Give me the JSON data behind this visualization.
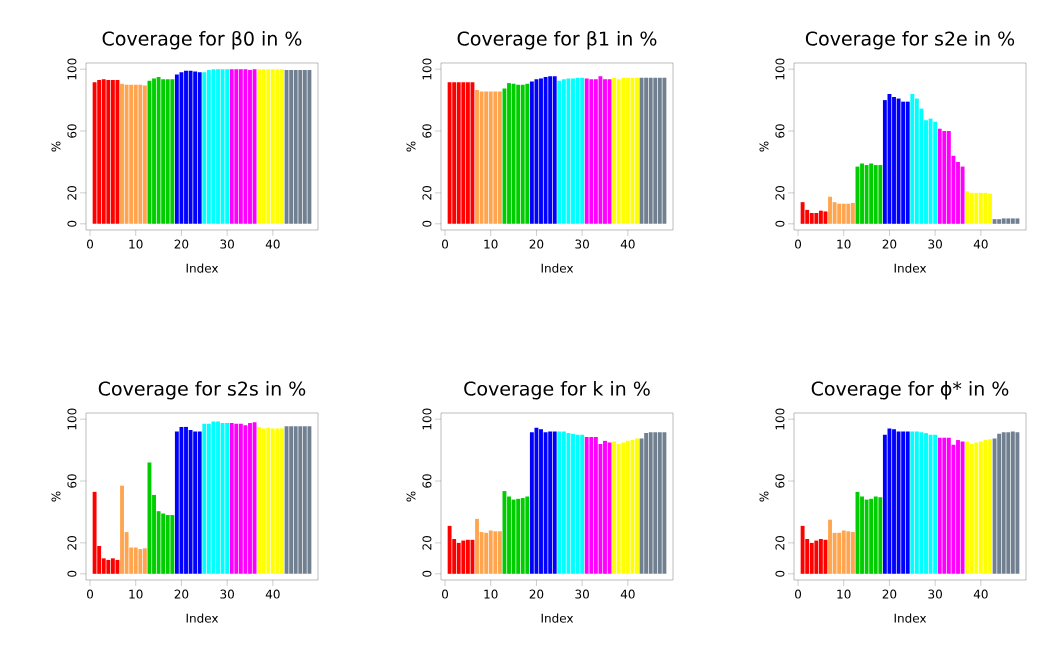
{
  "chart_data": [
    {
      "type": "bar",
      "title": "Coverage for β0 in %",
      "xlabel": "Index",
      "ylabel": "%",
      "xlim": [
        -0.88,
        49.88
      ],
      "ylim": [
        -4,
        104
      ],
      "xticks": [
        0,
        10,
        20,
        30,
        40
      ],
      "yticks": [
        0,
        20,
        60,
        100
      ],
      "x": [
        1,
        2,
        3,
        4,
        5,
        6,
        7,
        8,
        9,
        10,
        11,
        12,
        13,
        14,
        15,
        16,
        17,
        18,
        19,
        20,
        21,
        22,
        23,
        24,
        25,
        26,
        27,
        28,
        29,
        30,
        31,
        32,
        33,
        34,
        35,
        36,
        37,
        38,
        39,
        40,
        41,
        42,
        43,
        44,
        45,
        46,
        47,
        48
      ],
      "values": [
        91.5,
        93,
        93.5,
        93,
        93,
        93,
        90.5,
        90,
        90,
        90,
        90,
        89.5,
        92.5,
        94,
        95,
        93.5,
        93.5,
        93.5,
        96.5,
        98,
        99,
        99,
        98.5,
        98,
        98,
        99.5,
        100,
        100,
        100,
        100,
        100,
        100,
        100,
        100,
        99.5,
        100,
        100,
        100,
        100,
        100,
        100,
        100,
        99.5,
        99.5,
        99.5,
        99.5,
        99.5,
        99.5
      ],
      "colors": [
        "#ff0000",
        "#ff0000",
        "#ff0000",
        "#ff0000",
        "#ff0000",
        "#ff0000",
        "#ffa54f",
        "#ffa54f",
        "#ffa54f",
        "#ffa54f",
        "#ffa54f",
        "#ffa54f",
        "#00cd00",
        "#00cd00",
        "#00cd00",
        "#00cd00",
        "#00cd00",
        "#00cd00",
        "#0000ff",
        "#0000ff",
        "#0000ff",
        "#0000ff",
        "#0000ff",
        "#0000ff",
        "#00ffff",
        "#00ffff",
        "#00ffff",
        "#00ffff",
        "#00ffff",
        "#00ffff",
        "#ff00ff",
        "#ff00ff",
        "#ff00ff",
        "#ff00ff",
        "#ff00ff",
        "#ff00ff",
        "#ffff00",
        "#ffff00",
        "#ffff00",
        "#ffff00",
        "#ffff00",
        "#ffff00",
        "#708090",
        "#708090",
        "#708090",
        "#708090",
        "#708090",
        "#708090"
      ]
    },
    {
      "type": "bar",
      "title": "Coverage for β1 in %",
      "xlabel": "Index",
      "ylabel": "%",
      "xlim": [
        -0.88,
        49.88
      ],
      "ylim": [
        -4,
        104
      ],
      "xticks": [
        0,
        10,
        20,
        30,
        40
      ],
      "yticks": [
        0,
        20,
        60,
        100
      ],
      "x": [
        1,
        2,
        3,
        4,
        5,
        6,
        7,
        8,
        9,
        10,
        11,
        12,
        13,
        14,
        15,
        16,
        17,
        18,
        19,
        20,
        21,
        22,
        23,
        24,
        25,
        26,
        27,
        28,
        29,
        30,
        31,
        32,
        33,
        34,
        35,
        36,
        37,
        38,
        39,
        40,
        41,
        42,
        43,
        44,
        45,
        46,
        47,
        48
      ],
      "values": [
        91.5,
        91.5,
        91.5,
        91.5,
        91.5,
        91.5,
        86.5,
        85.5,
        85.5,
        85.5,
        85.5,
        85.5,
        87.5,
        91,
        90.5,
        90,
        90,
        90.5,
        92,
        93.5,
        94,
        95,
        95.5,
        95.5,
        92.5,
        93.5,
        94,
        94,
        94.5,
        94.5,
        94,
        93.5,
        93.5,
        95.5,
        93.5,
        93.5,
        94.5,
        93.5,
        94.5,
        94.5,
        94.5,
        94.5,
        94.5,
        94.5,
        94.5,
        94.5,
        94.5,
        94.5
      ],
      "colors": [
        "#ff0000",
        "#ff0000",
        "#ff0000",
        "#ff0000",
        "#ff0000",
        "#ff0000",
        "#ffa54f",
        "#ffa54f",
        "#ffa54f",
        "#ffa54f",
        "#ffa54f",
        "#ffa54f",
        "#00cd00",
        "#00cd00",
        "#00cd00",
        "#00cd00",
        "#00cd00",
        "#00cd00",
        "#0000ff",
        "#0000ff",
        "#0000ff",
        "#0000ff",
        "#0000ff",
        "#0000ff",
        "#00ffff",
        "#00ffff",
        "#00ffff",
        "#00ffff",
        "#00ffff",
        "#00ffff",
        "#ff00ff",
        "#ff00ff",
        "#ff00ff",
        "#ff00ff",
        "#ff00ff",
        "#ff00ff",
        "#ffff00",
        "#ffff00",
        "#ffff00",
        "#ffff00",
        "#ffff00",
        "#ffff00",
        "#708090",
        "#708090",
        "#708090",
        "#708090",
        "#708090",
        "#708090"
      ]
    },
    {
      "type": "bar",
      "title": "Coverage for s2e in %",
      "xlabel": "Index",
      "ylabel": "%",
      "xlim": [
        -0.88,
        49.88
      ],
      "ylim": [
        -4,
        104
      ],
      "xticks": [
        0,
        10,
        20,
        30,
        40
      ],
      "yticks": [
        0,
        20,
        60,
        100
      ],
      "x": [
        1,
        2,
        3,
        4,
        5,
        6,
        7,
        8,
        9,
        10,
        11,
        12,
        13,
        14,
        15,
        16,
        17,
        18,
        19,
        20,
        21,
        22,
        23,
        24,
        25,
        26,
        27,
        28,
        29,
        30,
        31,
        32,
        33,
        34,
        35,
        36,
        37,
        38,
        39,
        40,
        41,
        42,
        43,
        44,
        45,
        46,
        47,
        48
      ],
      "values": [
        14,
        9,
        7,
        7,
        8.5,
        8,
        17.5,
        14,
        13,
        13,
        13,
        13.5,
        37,
        39,
        38,
        39,
        38,
        38,
        80,
        84,
        82,
        81,
        79,
        79,
        84,
        81,
        74.5,
        67,
        68,
        66,
        61.5,
        60,
        60,
        44,
        40,
        37,
        21,
        20,
        20,
        20,
        20,
        19.5,
        3,
        3,
        3.5,
        3.5,
        3.5,
        3.5
      ],
      "colors": [
        "#ff0000",
        "#ff0000",
        "#ff0000",
        "#ff0000",
        "#ff0000",
        "#ff0000",
        "#ffa54f",
        "#ffa54f",
        "#ffa54f",
        "#ffa54f",
        "#ffa54f",
        "#ffa54f",
        "#00cd00",
        "#00cd00",
        "#00cd00",
        "#00cd00",
        "#00cd00",
        "#00cd00",
        "#0000ff",
        "#0000ff",
        "#0000ff",
        "#0000ff",
        "#0000ff",
        "#0000ff",
        "#00ffff",
        "#00ffff",
        "#00ffff",
        "#00ffff",
        "#00ffff",
        "#00ffff",
        "#ff00ff",
        "#ff00ff",
        "#ff00ff",
        "#ff00ff",
        "#ff00ff",
        "#ff00ff",
        "#ffff00",
        "#ffff00",
        "#ffff00",
        "#ffff00",
        "#ffff00",
        "#ffff00",
        "#708090",
        "#708090",
        "#708090",
        "#708090",
        "#708090",
        "#708090"
      ]
    },
    {
      "type": "bar",
      "title": "Coverage for s2s in %",
      "xlabel": "Index",
      "ylabel": "%",
      "xlim": [
        -0.88,
        49.88
      ],
      "ylim": [
        -4,
        104
      ],
      "xticks": [
        0,
        10,
        20,
        30,
        40
      ],
      "yticks": [
        0,
        20,
        60,
        100
      ],
      "x": [
        1,
        2,
        3,
        4,
        5,
        6,
        7,
        8,
        9,
        10,
        11,
        12,
        13,
        14,
        15,
        16,
        17,
        18,
        19,
        20,
        21,
        22,
        23,
        24,
        25,
        26,
        27,
        28,
        29,
        30,
        31,
        32,
        33,
        34,
        35,
        36,
        37,
        38,
        39,
        40,
        41,
        42,
        43,
        44,
        45,
        46,
        47,
        48
      ],
      "values": [
        53,
        18,
        10,
        9,
        10,
        9,
        57,
        27,
        17,
        17,
        16,
        16.5,
        72,
        51,
        40.5,
        39,
        38,
        38,
        92,
        95,
        95,
        93,
        92,
        92,
        97,
        97,
        98.5,
        98.5,
        97.5,
        97.5,
        97.5,
        97,
        97,
        96,
        97.5,
        98,
        95,
        94,
        94.5,
        94,
        94,
        94,
        95.5,
        95.5,
        95.5,
        95.5,
        95.5,
        95.5
      ],
      "colors": [
        "#ff0000",
        "#ff0000",
        "#ff0000",
        "#ff0000",
        "#ff0000",
        "#ff0000",
        "#ffa54f",
        "#ffa54f",
        "#ffa54f",
        "#ffa54f",
        "#ffa54f",
        "#ffa54f",
        "#00cd00",
        "#00cd00",
        "#00cd00",
        "#00cd00",
        "#00cd00",
        "#00cd00",
        "#0000ff",
        "#0000ff",
        "#0000ff",
        "#0000ff",
        "#0000ff",
        "#0000ff",
        "#00ffff",
        "#00ffff",
        "#00ffff",
        "#00ffff",
        "#00ffff",
        "#00ffff",
        "#ff00ff",
        "#ff00ff",
        "#ff00ff",
        "#ff00ff",
        "#ff00ff",
        "#ff00ff",
        "#ffff00",
        "#ffff00",
        "#ffff00",
        "#ffff00",
        "#ffff00",
        "#ffff00",
        "#708090",
        "#708090",
        "#708090",
        "#708090",
        "#708090",
        "#708090"
      ]
    },
    {
      "type": "bar",
      "title": "Coverage for k in %",
      "xlabel": "Index",
      "ylabel": "%",
      "xlim": [
        -0.88,
        49.88
      ],
      "ylim": [
        -4,
        104
      ],
      "xticks": [
        0,
        10,
        20,
        30,
        40
      ],
      "yticks": [
        0,
        20,
        60,
        100
      ],
      "x": [
        1,
        2,
        3,
        4,
        5,
        6,
        7,
        8,
        9,
        10,
        11,
        12,
        13,
        14,
        15,
        16,
        17,
        18,
        19,
        20,
        21,
        22,
        23,
        24,
        25,
        26,
        27,
        28,
        29,
        30,
        31,
        32,
        33,
        34,
        35,
        36,
        37,
        38,
        39,
        40,
        41,
        42,
        43,
        44,
        45,
        46,
        47,
        48
      ],
      "values": [
        31,
        22.5,
        20,
        21.5,
        22,
        22,
        35.5,
        27,
        26.5,
        28,
        27.5,
        27.5,
        53.5,
        50,
        48,
        48.5,
        49,
        50,
        91.5,
        94.5,
        93.5,
        91.5,
        92,
        92,
        92,
        92,
        91,
        90.5,
        90,
        90,
        88.5,
        88.5,
        88.5,
        84,
        86,
        85,
        85.5,
        84,
        85,
        86,
        86.5,
        87.5,
        87.5,
        91,
        91.5,
        91.5,
        91.5,
        91.5
      ],
      "colors": [
        "#ff0000",
        "#ff0000",
        "#ff0000",
        "#ff0000",
        "#ff0000",
        "#ff0000",
        "#ffa54f",
        "#ffa54f",
        "#ffa54f",
        "#ffa54f",
        "#ffa54f",
        "#ffa54f",
        "#00cd00",
        "#00cd00",
        "#00cd00",
        "#00cd00",
        "#00cd00",
        "#00cd00",
        "#0000ff",
        "#0000ff",
        "#0000ff",
        "#0000ff",
        "#0000ff",
        "#0000ff",
        "#00ffff",
        "#00ffff",
        "#00ffff",
        "#00ffff",
        "#00ffff",
        "#00ffff",
        "#ff00ff",
        "#ff00ff",
        "#ff00ff",
        "#ff00ff",
        "#ff00ff",
        "#ff00ff",
        "#ffff00",
        "#ffff00",
        "#ffff00",
        "#ffff00",
        "#ffff00",
        "#ffff00",
        "#708090",
        "#708090",
        "#708090",
        "#708090",
        "#708090",
        "#708090"
      ]
    },
    {
      "type": "bar",
      "title": "Coverage for ϕ* in %",
      "xlabel": "Index",
      "ylabel": "%",
      "xlim": [
        -0.88,
        49.88
      ],
      "ylim": [
        -4,
        104
      ],
      "xticks": [
        0,
        10,
        20,
        30,
        40
      ],
      "yticks": [
        0,
        20,
        60,
        100
      ],
      "x": [
        1,
        2,
        3,
        4,
        5,
        6,
        7,
        8,
        9,
        10,
        11,
        12,
        13,
        14,
        15,
        16,
        17,
        18,
        19,
        20,
        21,
        22,
        23,
        24,
        25,
        26,
        27,
        28,
        29,
        30,
        31,
        32,
        33,
        34,
        35,
        36,
        37,
        38,
        39,
        40,
        41,
        42,
        43,
        44,
        45,
        46,
        47,
        48
      ],
      "values": [
        31,
        22.5,
        20,
        21.5,
        22.5,
        22,
        35,
        26.5,
        26.5,
        28,
        27.5,
        27,
        53,
        50,
        48,
        48.5,
        50,
        49.5,
        90,
        94,
        93.5,
        92,
        92,
        92,
        92,
        92,
        91.5,
        91,
        90,
        90,
        88,
        88,
        88,
        83.5,
        86.5,
        85.5,
        85.5,
        84,
        85,
        85.5,
        86.5,
        87,
        87.5,
        90.5,
        91.5,
        91.5,
        92,
        91.5
      ],
      "colors": [
        "#ff0000",
        "#ff0000",
        "#ff0000",
        "#ff0000",
        "#ff0000",
        "#ff0000",
        "#ffa54f",
        "#ffa54f",
        "#ffa54f",
        "#ffa54f",
        "#ffa54f",
        "#ffa54f",
        "#00cd00",
        "#00cd00",
        "#00cd00",
        "#00cd00",
        "#00cd00",
        "#00cd00",
        "#0000ff",
        "#0000ff",
        "#0000ff",
        "#0000ff",
        "#0000ff",
        "#0000ff",
        "#00ffff",
        "#00ffff",
        "#00ffff",
        "#00ffff",
        "#00ffff",
        "#00ffff",
        "#ff00ff",
        "#ff00ff",
        "#ff00ff",
        "#ff00ff",
        "#ff00ff",
        "#ff00ff",
        "#ffff00",
        "#ffff00",
        "#ffff00",
        "#ffff00",
        "#ffff00",
        "#ffff00",
        "#708090",
        "#708090",
        "#708090",
        "#708090",
        "#708090",
        "#708090"
      ]
    }
  ]
}
